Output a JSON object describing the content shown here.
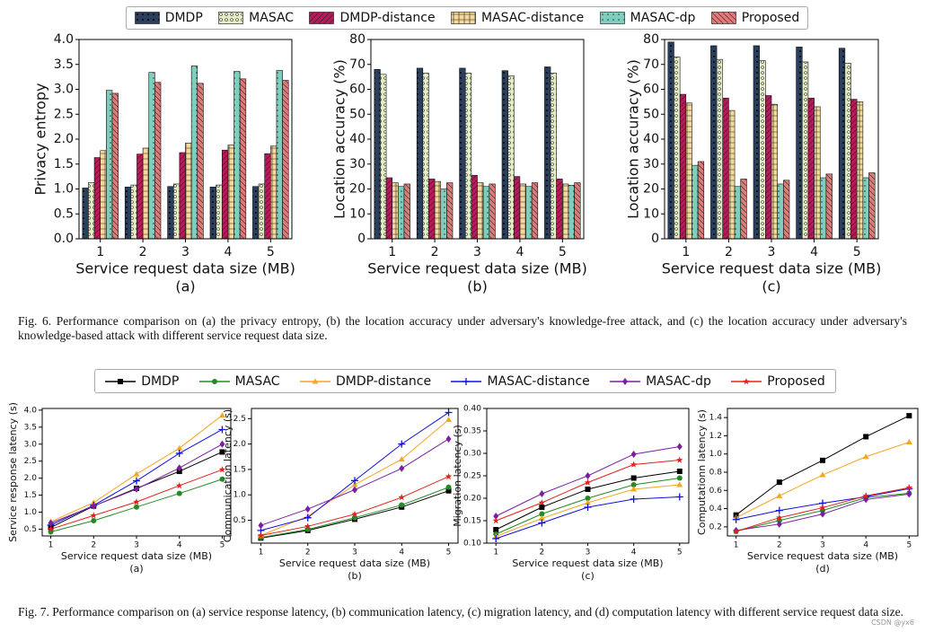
{
  "chart_data": [
    {
      "type": "bar",
      "caption": "(a)",
      "xlabel": "Service request data size (MB)",
      "ylabel": "Privacy  entropy",
      "categories": [
        "1",
        "2",
        "3",
        "4",
        "5"
      ],
      "ylim": [
        0,
        4
      ],
      "yticks": [
        {
          "value": 0,
          "label": "0.0"
        },
        0.5,
        {
          "value": 1,
          "label": "1.0"
        },
        1.5,
        {
          "value": 2,
          "label": "2.0"
        },
        2.5,
        {
          "value": 3,
          "label": "3.0"
        },
        3.5,
        {
          "value": 4,
          "label": "4.0"
        }
      ],
      "series": [
        {
          "name": "DMDP",
          "color": "#2b3f5c",
          "values": [
            1.02,
            1.04,
            1.05,
            1.04,
            1.05
          ]
        },
        {
          "name": "MASAC",
          "color": "#e4edc6",
          "values": [
            1.13,
            1.08,
            1.1,
            1.08,
            1.1
          ]
        },
        {
          "name": "DMDP-distance",
          "color": "#b8195a",
          "values": [
            1.63,
            1.7,
            1.73,
            1.78,
            1.71
          ]
        },
        {
          "name": "MASAC-distance",
          "color": "#f6d99a",
          "values": [
            1.77,
            1.82,
            1.92,
            1.88,
            1.86
          ]
        },
        {
          "name": "MASAC-dp",
          "color": "#7fcdbb",
          "values": [
            2.98,
            3.34,
            3.47,
            3.36,
            3.38
          ]
        },
        {
          "name": "Proposed",
          "color": "#e07a7a",
          "values": [
            2.92,
            3.14,
            3.12,
            3.21,
            3.18
          ]
        }
      ]
    },
    {
      "type": "bar",
      "caption": "(b)",
      "xlabel": "Service request data size (MB)",
      "ylabel": "Location accuracy (%)",
      "categories": [
        "1",
        "2",
        "3",
        "4",
        "5"
      ],
      "ylim": [
        0,
        80
      ],
      "yticks": [
        0,
        10,
        20,
        30,
        40,
        50,
        60,
        70,
        80
      ],
      "series": [
        {
          "color": "#2b3f5c",
          "values": [
            68,
            68.5,
            68.5,
            67.5,
            69
          ]
        },
        {
          "color": "#e4edc6",
          "values": [
            66,
            66.5,
            66.5,
            65.5,
            66.5
          ]
        },
        {
          "color": "#b8195a",
          "values": [
            24.5,
            24,
            25.5,
            25,
            24
          ]
        },
        {
          "color": "#f6d99a",
          "values": [
            22.5,
            23,
            22.5,
            22,
            22
          ]
        },
        {
          "color": "#7fcdbb",
          "values": [
            21,
            20,
            21,
            21,
            21.5
          ]
        },
        {
          "color": "#e07a7a",
          "values": [
            22,
            22.5,
            22,
            22.5,
            22.5
          ]
        }
      ]
    },
    {
      "type": "bar",
      "caption": "(c)",
      "xlabel": "Service request data size (MB)",
      "ylabel": "Location accuracy (%)",
      "categories": [
        "1",
        "2",
        "3",
        "4",
        "5"
      ],
      "ylim": [
        0,
        80
      ],
      "yticks": [
        0,
        10,
        20,
        30,
        40,
        50,
        60,
        70,
        80
      ],
      "series": [
        {
          "color": "#2b3f5c",
          "values": [
            79,
            77.5,
            77.5,
            77,
            76.5
          ]
        },
        {
          "color": "#e4edc6",
          "values": [
            73,
            72,
            71.5,
            71,
            70.5
          ]
        },
        {
          "color": "#b8195a",
          "values": [
            58,
            56.5,
            57.5,
            56.5,
            56
          ]
        },
        {
          "color": "#f6d99a",
          "values": [
            54.5,
            51.5,
            54,
            53,
            55
          ]
        },
        {
          "color": "#7fcdbb",
          "values": [
            29.5,
            21,
            22,
            24.5,
            24.5
          ]
        },
        {
          "color": "#e07a7a",
          "values": [
            31,
            24,
            23.5,
            26,
            26.5
          ]
        }
      ]
    },
    {
      "type": "line",
      "caption": "(a)",
      "xlabel": "Service request data size (MB)",
      "ylabel": "Service response latency (s)",
      "x": [
        1,
        2,
        3,
        4,
        5
      ],
      "xlim": [
        0.8,
        5.2
      ],
      "xticks": [
        1,
        2,
        3,
        4,
        5
      ],
      "ylim": [
        0.3,
        4.05
      ],
      "yticks": [
        0.5,
        {
          "value": 1,
          "label": "1.0"
        },
        1.5,
        {
          "value": 2,
          "label": "2.0"
        },
        2.5,
        {
          "value": 3,
          "label": "3.0"
        },
        3.5,
        {
          "value": 4,
          "label": "4.0"
        }
      ],
      "series": [
        {
          "name": "DMDP",
          "color": "#000000",
          "values": [
            0.55,
            1.18,
            1.7,
            2.2,
            2.77
          ]
        },
        {
          "name": "MASAC",
          "color": "#228b22",
          "values": [
            0.42,
            0.75,
            1.15,
            1.55,
            1.97
          ]
        },
        {
          "name": "DMDP-distance",
          "color": "#f5a623",
          "values": [
            0.72,
            1.28,
            2.12,
            2.88,
            3.85
          ]
        },
        {
          "name": "MASAC-distance",
          "color": "#1010e0",
          "values": [
            0.62,
            1.2,
            1.92,
            2.73,
            3.43
          ]
        },
        {
          "name": "MASAC-dp",
          "color": "#7b1fa2",
          "values": [
            0.68,
            1.18,
            1.68,
            2.3,
            3.0
          ]
        },
        {
          "name": "Proposed",
          "color": "#e0201c",
          "values": [
            0.5,
            0.9,
            1.3,
            1.78,
            2.25
          ]
        }
      ]
    },
    {
      "type": "line",
      "caption": "(b)",
      "xlabel": "Service request data size (MB)",
      "ylabel": "Communication latency (s)",
      "x": [
        1,
        2,
        3,
        4,
        5
      ],
      "xlim": [
        0.8,
        5.2
      ],
      "xticks": [
        1,
        2,
        3,
        4,
        5
      ],
      "ylim": [
        0.05,
        2.7
      ],
      "yticks": [
        0.5,
        {
          "value": 1,
          "label": "1.0"
        },
        1.5,
        {
          "value": 2,
          "label": "2.0"
        },
        2.5
      ],
      "series": [
        {
          "color": "#000000",
          "values": [
            0.15,
            0.3,
            0.52,
            0.76,
            1.08
          ]
        },
        {
          "color": "#228b22",
          "values": [
            0.16,
            0.32,
            0.55,
            0.8,
            1.15
          ]
        },
        {
          "color": "#f5a623",
          "values": [
            0.2,
            0.58,
            1.2,
            1.7,
            2.48
          ]
        },
        {
          "color": "#1010e0",
          "values": [
            0.3,
            0.55,
            1.28,
            2.0,
            2.62
          ]
        },
        {
          "color": "#7b1fa2",
          "values": [
            0.4,
            0.72,
            1.1,
            1.52,
            2.1
          ]
        },
        {
          "color": "#e0201c",
          "values": [
            0.2,
            0.38,
            0.62,
            0.95,
            1.36
          ]
        }
      ]
    },
    {
      "type": "line",
      "caption": "(c)",
      "xlabel": "Service request data size (MB)",
      "ylabel": "Migration latency (s)",
      "x": [
        1,
        2,
        3,
        4,
        5
      ],
      "xlim": [
        0.8,
        5.2
      ],
      "xticks": [
        1,
        2,
        3,
        4,
        5
      ],
      "ylim": [
        0.1,
        0.4
      ],
      "yticks": [
        {
          "value": 0.1,
          "label": "0.10"
        },
        0.15,
        {
          "value": 0.2,
          "label": "0.20"
        },
        0.25,
        {
          "value": 0.3,
          "label": "0.30"
        },
        0.35,
        {
          "value": 0.4,
          "label": "0.40"
        }
      ],
      "series": [
        {
          "color": "#000000",
          "values": [
            0.13,
            0.18,
            0.22,
            0.245,
            0.26
          ]
        },
        {
          "color": "#228b22",
          "values": [
            0.12,
            0.165,
            0.2,
            0.23,
            0.245
          ]
        },
        {
          "color": "#f5a623",
          "values": [
            0.115,
            0.155,
            0.19,
            0.22,
            0.23
          ]
        },
        {
          "color": "#1010e0",
          "values": [
            0.11,
            0.145,
            0.18,
            0.198,
            0.203
          ]
        },
        {
          "color": "#7b1fa2",
          "values": [
            0.16,
            0.21,
            0.25,
            0.298,
            0.315
          ]
        },
        {
          "color": "#e0201c",
          "values": [
            0.15,
            0.19,
            0.235,
            0.275,
            0.285
          ]
        }
      ]
    },
    {
      "type": "line",
      "caption": "(d)",
      "xlabel": "Service request data size (MB)",
      "ylabel": "Computationn latency (s)",
      "x": [
        1,
        2,
        3,
        4,
        5
      ],
      "xlim": [
        0.8,
        5.2
      ],
      "xticks": [
        1,
        2,
        3,
        4,
        5
      ],
      "ylim": [
        0.1,
        1.5
      ],
      "yticks": [
        0.2,
        0.4,
        0.6,
        0.8,
        {
          "value": 1,
          "label": "1.0"
        },
        1.2,
        1.4
      ],
      "series": [
        {
          "color": "#000000",
          "values": [
            0.33,
            0.69,
            0.93,
            1.19,
            1.42
          ]
        },
        {
          "color": "#228b22",
          "values": [
            0.15,
            0.27,
            0.38,
            0.52,
            0.57
          ]
        },
        {
          "color": "#f5a623",
          "values": [
            0.3,
            0.54,
            0.77,
            0.97,
            1.13
          ]
        },
        {
          "color": "#1010e0",
          "values": [
            0.28,
            0.38,
            0.46,
            0.53,
            0.62
          ]
        },
        {
          "color": "#7b1fa2",
          "values": [
            0.16,
            0.23,
            0.34,
            0.5,
            0.56
          ]
        },
        {
          "color": "#e0201c",
          "values": [
            0.15,
            0.3,
            0.41,
            0.54,
            0.63
          ]
        }
      ]
    }
  ],
  "captions": [
    "Fig. 6.  Performance comparison on (a) the privacy entropy, (b) the location accuracy under adversary's knowledge-free attack, and (c) the location accuracy under adversary's knowledge-based attack with different service request data size.",
    "Fig. 7.  Performance comparison on (a) service response latency, (b) communication latency, (c) migration latency, and (d) computation latency with different service request data size."
  ],
  "watermark": "CSDN @yx6"
}
